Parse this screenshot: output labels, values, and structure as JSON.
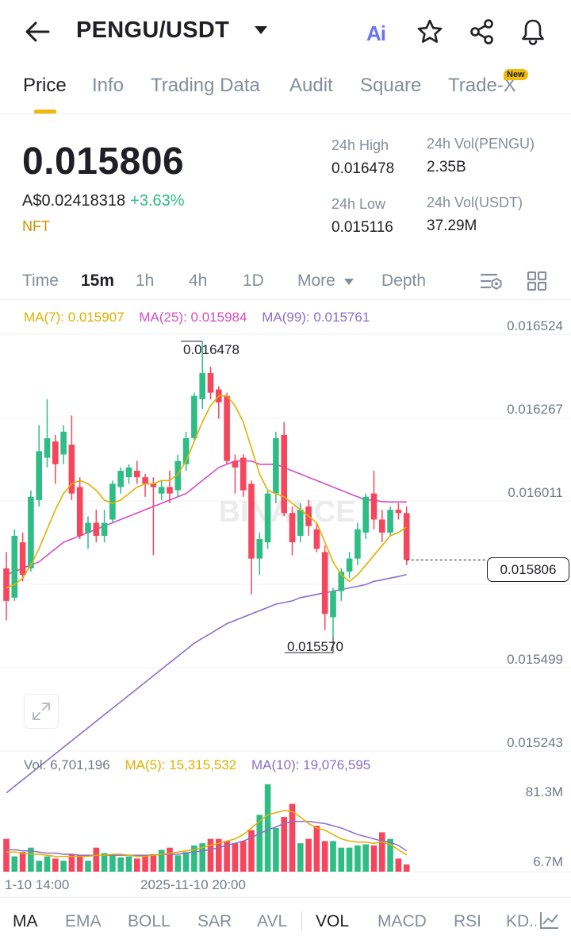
{
  "header": {
    "pair": "PENGU/USDT",
    "ai_label": "Ai",
    "icons": [
      "back-arrow-icon",
      "dropdown-caret-icon",
      "ai-icon",
      "star-icon",
      "share-icon",
      "bell-icon"
    ]
  },
  "tabs": [
    {
      "label": "Price",
      "active": true
    },
    {
      "label": "Info"
    },
    {
      "label": "Trading Data"
    },
    {
      "label": "Audit"
    },
    {
      "label": "Square"
    },
    {
      "label": "Trade-X",
      "badge": "New"
    }
  ],
  "ticker": {
    "last_price": "0.015806",
    "aud_price": "A$0.02418318",
    "change_pct": "+3.63%",
    "tag": "NFT",
    "high_label": "24h High",
    "high_value": "0.016478",
    "low_label": "24h Low",
    "low_value": "0.015116",
    "vol_base_label": "24h Vol(PENGU)",
    "vol_base_value": "2.35B",
    "vol_quote_label": "24h Vol(USDT)",
    "vol_quote_value": "37.29M"
  },
  "timeframes": [
    {
      "label": "Time"
    },
    {
      "label": "15m",
      "active": true
    },
    {
      "label": "1h"
    },
    {
      "label": "4h"
    },
    {
      "label": "1D"
    },
    {
      "label": "More"
    },
    {
      "label": "Depth"
    }
  ],
  "indicators_main": {
    "ma7": "MA(7): 0.015907",
    "ma25": "MA(25): 0.015984",
    "ma99": "MA(99): 0.015761"
  },
  "indicators_vol": {
    "vol": "Vol: 6,701,196",
    "ma5": "MA(5): 15,315,532",
    "ma10": "MA(10): 19,076,595"
  },
  "colors": {
    "up": "#2ebd85",
    "down": "#f6465d",
    "ma7": "#e0b100",
    "ma25": "#d44fc4",
    "ma99": "#8c6fc6",
    "accent": "#f0b90b"
  },
  "watermark": "BINANCE",
  "chart_data": {
    "type": "candlestick",
    "interval": "15m",
    "price_axis_ticks": [
      "0.016524",
      "0.016267",
      "0.016011",
      "0.015499",
      "0.015243"
    ],
    "current_price_label": "0.015806",
    "max_marker": "0.016478",
    "min_marker": "0.015570",
    "volume_axis_ticks": [
      "81.3M",
      "6.7M"
    ],
    "x_tick_labels": [
      "1-10 14:00",
      "2025-11-10 20:00"
    ],
    "candles": [
      {
        "o": 0.01578,
        "c": 0.01568,
        "h": 0.01583,
        "l": 0.01562
      },
      {
        "o": 0.01569,
        "c": 0.01588,
        "h": 0.0159,
        "l": 0.01568
      },
      {
        "o": 0.01586,
        "c": 0.01576,
        "h": 0.01589,
        "l": 0.01574
      },
      {
        "o": 0.01578,
        "c": 0.016,
        "h": 0.01602,
        "l": 0.01577
      },
      {
        "o": 0.01599,
        "c": 0.01614,
        "h": 0.01622,
        "l": 0.01597
      },
      {
        "o": 0.01612,
        "c": 0.01618,
        "h": 0.0163,
        "l": 0.01609
      },
      {
        "o": 0.01617,
        "c": 0.0161,
        "h": 0.01619,
        "l": 0.01604
      },
      {
        "o": 0.01613,
        "c": 0.0162,
        "h": 0.01622,
        "l": 0.0161
      },
      {
        "o": 0.01616,
        "c": 0.01601,
        "h": 0.01625,
        "l": 0.01599
      },
      {
        "o": 0.01603,
        "c": 0.01588,
        "h": 0.01606,
        "l": 0.01587
      },
      {
        "o": 0.01589,
        "c": 0.01592,
        "h": 0.01594,
        "l": 0.01584
      },
      {
        "o": 0.01592,
        "c": 0.01588,
        "h": 0.01596,
        "l": 0.01586
      },
      {
        "o": 0.01588,
        "c": 0.01592,
        "h": 0.01596,
        "l": 0.01586
      },
      {
        "o": 0.01593,
        "c": 0.01604,
        "h": 0.01605,
        "l": 0.01592
      },
      {
        "o": 0.01603,
        "c": 0.01608,
        "h": 0.01609,
        "l": 0.01601
      },
      {
        "o": 0.01606,
        "c": 0.01609,
        "h": 0.0161,
        "l": 0.01604
      },
      {
        "o": 0.01608,
        "c": 0.01606,
        "h": 0.01611,
        "l": 0.01604
      },
      {
        "o": 0.01606,
        "c": 0.01604,
        "h": 0.01607,
        "l": 0.016
      },
      {
        "o": 0.01604,
        "c": 0.01603,
        "h": 0.01606,
        "l": 0.01582
      },
      {
        "o": 0.01601,
        "c": 0.01603,
        "h": 0.01605,
        "l": 0.01599
      },
      {
        "o": 0.01603,
        "c": 0.01601,
        "h": 0.01608,
        "l": 0.01598
      },
      {
        "o": 0.01602,
        "c": 0.01611,
        "h": 0.01613,
        "l": 0.016
      },
      {
        "o": 0.0161,
        "c": 0.01618,
        "h": 0.0162,
        "l": 0.01608
      },
      {
        "o": 0.01618,
        "c": 0.01631,
        "h": 0.01632,
        "l": 0.01617
      },
      {
        "o": 0.0163,
        "c": 0.01638,
        "h": 0.016478,
        "l": 0.01627
      },
      {
        "o": 0.01638,
        "c": 0.01632,
        "h": 0.0164,
        "l": 0.0163
      },
      {
        "o": 0.01633,
        "c": 0.01629,
        "h": 0.01634,
        "l": 0.01624
      },
      {
        "o": 0.01631,
        "c": 0.01611,
        "h": 0.01632,
        "l": 0.0161
      },
      {
        "o": 0.01611,
        "c": 0.01609,
        "h": 0.01613,
        "l": 0.01601
      },
      {
        "o": 0.01612,
        "c": 0.01602,
        "h": 0.01613,
        "l": 0.016
      },
      {
        "o": 0.01604,
        "c": 0.01581,
        "h": 0.01605,
        "l": 0.0157
      },
      {
        "o": 0.01581,
        "c": 0.01587,
        "h": 0.01589,
        "l": 0.01576
      },
      {
        "o": 0.01586,
        "c": 0.01601,
        "h": 0.01602,
        "l": 0.01584
      },
      {
        "o": 0.01601,
        "c": 0.01618,
        "h": 0.0162,
        "l": 0.01598
      },
      {
        "o": 0.01619,
        "c": 0.01595,
        "h": 0.01623,
        "l": 0.01594
      },
      {
        "o": 0.01595,
        "c": 0.01586,
        "h": 0.01597,
        "l": 0.01582
      },
      {
        "o": 0.01588,
        "c": 0.01596,
        "h": 0.01598,
        "l": 0.01586
      },
      {
        "o": 0.01597,
        "c": 0.01591,
        "h": 0.01599,
        "l": 0.01588
      },
      {
        "o": 0.0159,
        "c": 0.01584,
        "h": 0.01592,
        "l": 0.01583
      },
      {
        "o": 0.01583,
        "c": 0.01564,
        "h": 0.01585,
        "l": 0.01559
      },
      {
        "o": 0.01563,
        "c": 0.01571,
        "h": 0.01572,
        "l": 0.01557
      },
      {
        "o": 0.01571,
        "c": 0.01577,
        "h": 0.01578,
        "l": 0.01568
      },
      {
        "o": 0.01577,
        "c": 0.01581,
        "h": 0.01583,
        "l": 0.01575
      },
      {
        "o": 0.01581,
        "c": 0.0159,
        "h": 0.01592,
        "l": 0.01579
      },
      {
        "o": 0.01589,
        "c": 0.016,
        "h": 0.01601,
        "l": 0.01587
      },
      {
        "o": 0.01601,
        "c": 0.01593,
        "h": 0.01608,
        "l": 0.0159
      },
      {
        "o": 0.01593,
        "c": 0.01589,
        "h": 0.01596,
        "l": 0.01586
      },
      {
        "o": 0.01589,
        "c": 0.01596,
        "h": 0.01597,
        "l": 0.01588
      },
      {
        "o": 0.01596,
        "c": 0.01595,
        "h": 0.01598,
        "l": 0.01593
      },
      {
        "o": 0.01595,
        "c": 0.015806,
        "h": 0.01597,
        "l": 0.01579
      }
    ],
    "ma7": [
      0.01572,
      0.01573,
      0.01575,
      0.01579,
      0.01584,
      0.0159,
      0.01596,
      0.01601,
      0.01604,
      0.01605,
      0.01604,
      0.01602,
      0.01599,
      0.01598,
      0.01599,
      0.01601,
      0.01603,
      0.01604,
      0.01604,
      0.01605,
      0.01605,
      0.01607,
      0.01611,
      0.01617,
      0.01623,
      0.01628,
      0.01631,
      0.01631,
      0.01628,
      0.01623,
      0.01615,
      0.01607,
      0.01602,
      0.01601,
      0.016,
      0.01598,
      0.01596,
      0.01594,
      0.01592,
      0.01586,
      0.0158,
      0.01576,
      0.01574,
      0.01576,
      0.01579,
      0.01582,
      0.01585,
      0.01588,
      0.01589,
      0.015907
    ],
    "ma25": [
      0.01576,
      0.01577,
      0.01578,
      0.01579,
      0.0158,
      0.01582,
      0.01584,
      0.01586,
      0.01587,
      0.01588,
      0.01589,
      0.0159,
      0.01591,
      0.01592,
      0.01593,
      0.01594,
      0.01595,
      0.01596,
      0.01597,
      0.01598,
      0.01599,
      0.016,
      0.01601,
      0.01603,
      0.01605,
      0.01607,
      0.01609,
      0.0161,
      0.01611,
      0.01611,
      0.01611,
      0.0161,
      0.0161,
      0.0161,
      0.01609,
      0.01608,
      0.01607,
      0.01606,
      0.01605,
      0.01604,
      0.01603,
      0.01602,
      0.01601,
      0.016,
      0.01599,
      0.01599,
      0.015985,
      0.015984,
      0.015984,
      0.015984
    ],
    "ma99": [
      0.01509,
      0.01511,
      0.01513,
      0.01515,
      0.01517,
      0.01519,
      0.01521,
      0.01523,
      0.01525,
      0.01527,
      0.01529,
      0.01531,
      0.01533,
      0.01535,
      0.01537,
      0.01539,
      0.01541,
      0.01543,
      0.01545,
      0.01547,
      0.01549,
      0.01551,
      0.01553,
      0.01555,
      0.015565,
      0.01558,
      0.015595,
      0.01561,
      0.01562,
      0.01563,
      0.01564,
      0.01565,
      0.01566,
      0.01567,
      0.015675,
      0.01568,
      0.01569,
      0.015695,
      0.0157,
      0.015705,
      0.01571,
      0.015715,
      0.01572,
      0.015725,
      0.01573,
      0.01574,
      0.015745,
      0.01575,
      0.015755,
      0.015761
    ],
    "volumes": [
      30,
      14,
      18,
      22,
      10,
      14,
      12,
      10,
      16,
      15,
      10,
      22,
      17,
      15,
      13,
      14,
      12,
      14,
      16,
      20,
      22,
      15,
      18,
      24,
      26,
      30,
      30,
      28,
      26,
      28,
      38,
      52,
      80,
      40,
      50,
      62,
      26,
      30,
      42,
      28,
      28,
      22,
      22,
      24,
      25,
      24,
      36,
      30,
      12,
      6.7
    ],
    "vol_ma5": [
      18,
      18,
      17,
      16,
      16,
      15,
      14,
      14,
      14,
      14,
      14,
      15,
      15,
      16,
      16,
      15,
      14,
      14,
      15,
      16,
      17,
      18,
      19,
      20,
      22,
      24,
      26,
      28,
      30,
      34,
      40,
      46,
      52,
      54,
      56,
      55,
      50,
      44,
      40,
      38,
      34,
      30,
      28,
      27,
      27,
      26,
      27,
      25,
      20,
      15.3
    ],
    "vol_ma10": [
      20,
      20,
      19,
      19,
      18,
      17,
      17,
      16,
      16,
      15,
      15,
      15,
      15,
      15,
      15,
      15,
      15,
      15,
      15,
      16,
      16,
      16,
      17,
      18,
      19,
      20,
      22,
      24,
      26,
      28,
      31,
      35,
      38,
      41,
      44,
      46,
      46,
      46,
      45,
      44,
      42,
      40,
      37,
      34,
      32,
      30,
      28,
      27,
      24,
      19.1
    ],
    "vol_scale_max": 81.3
  }
}
